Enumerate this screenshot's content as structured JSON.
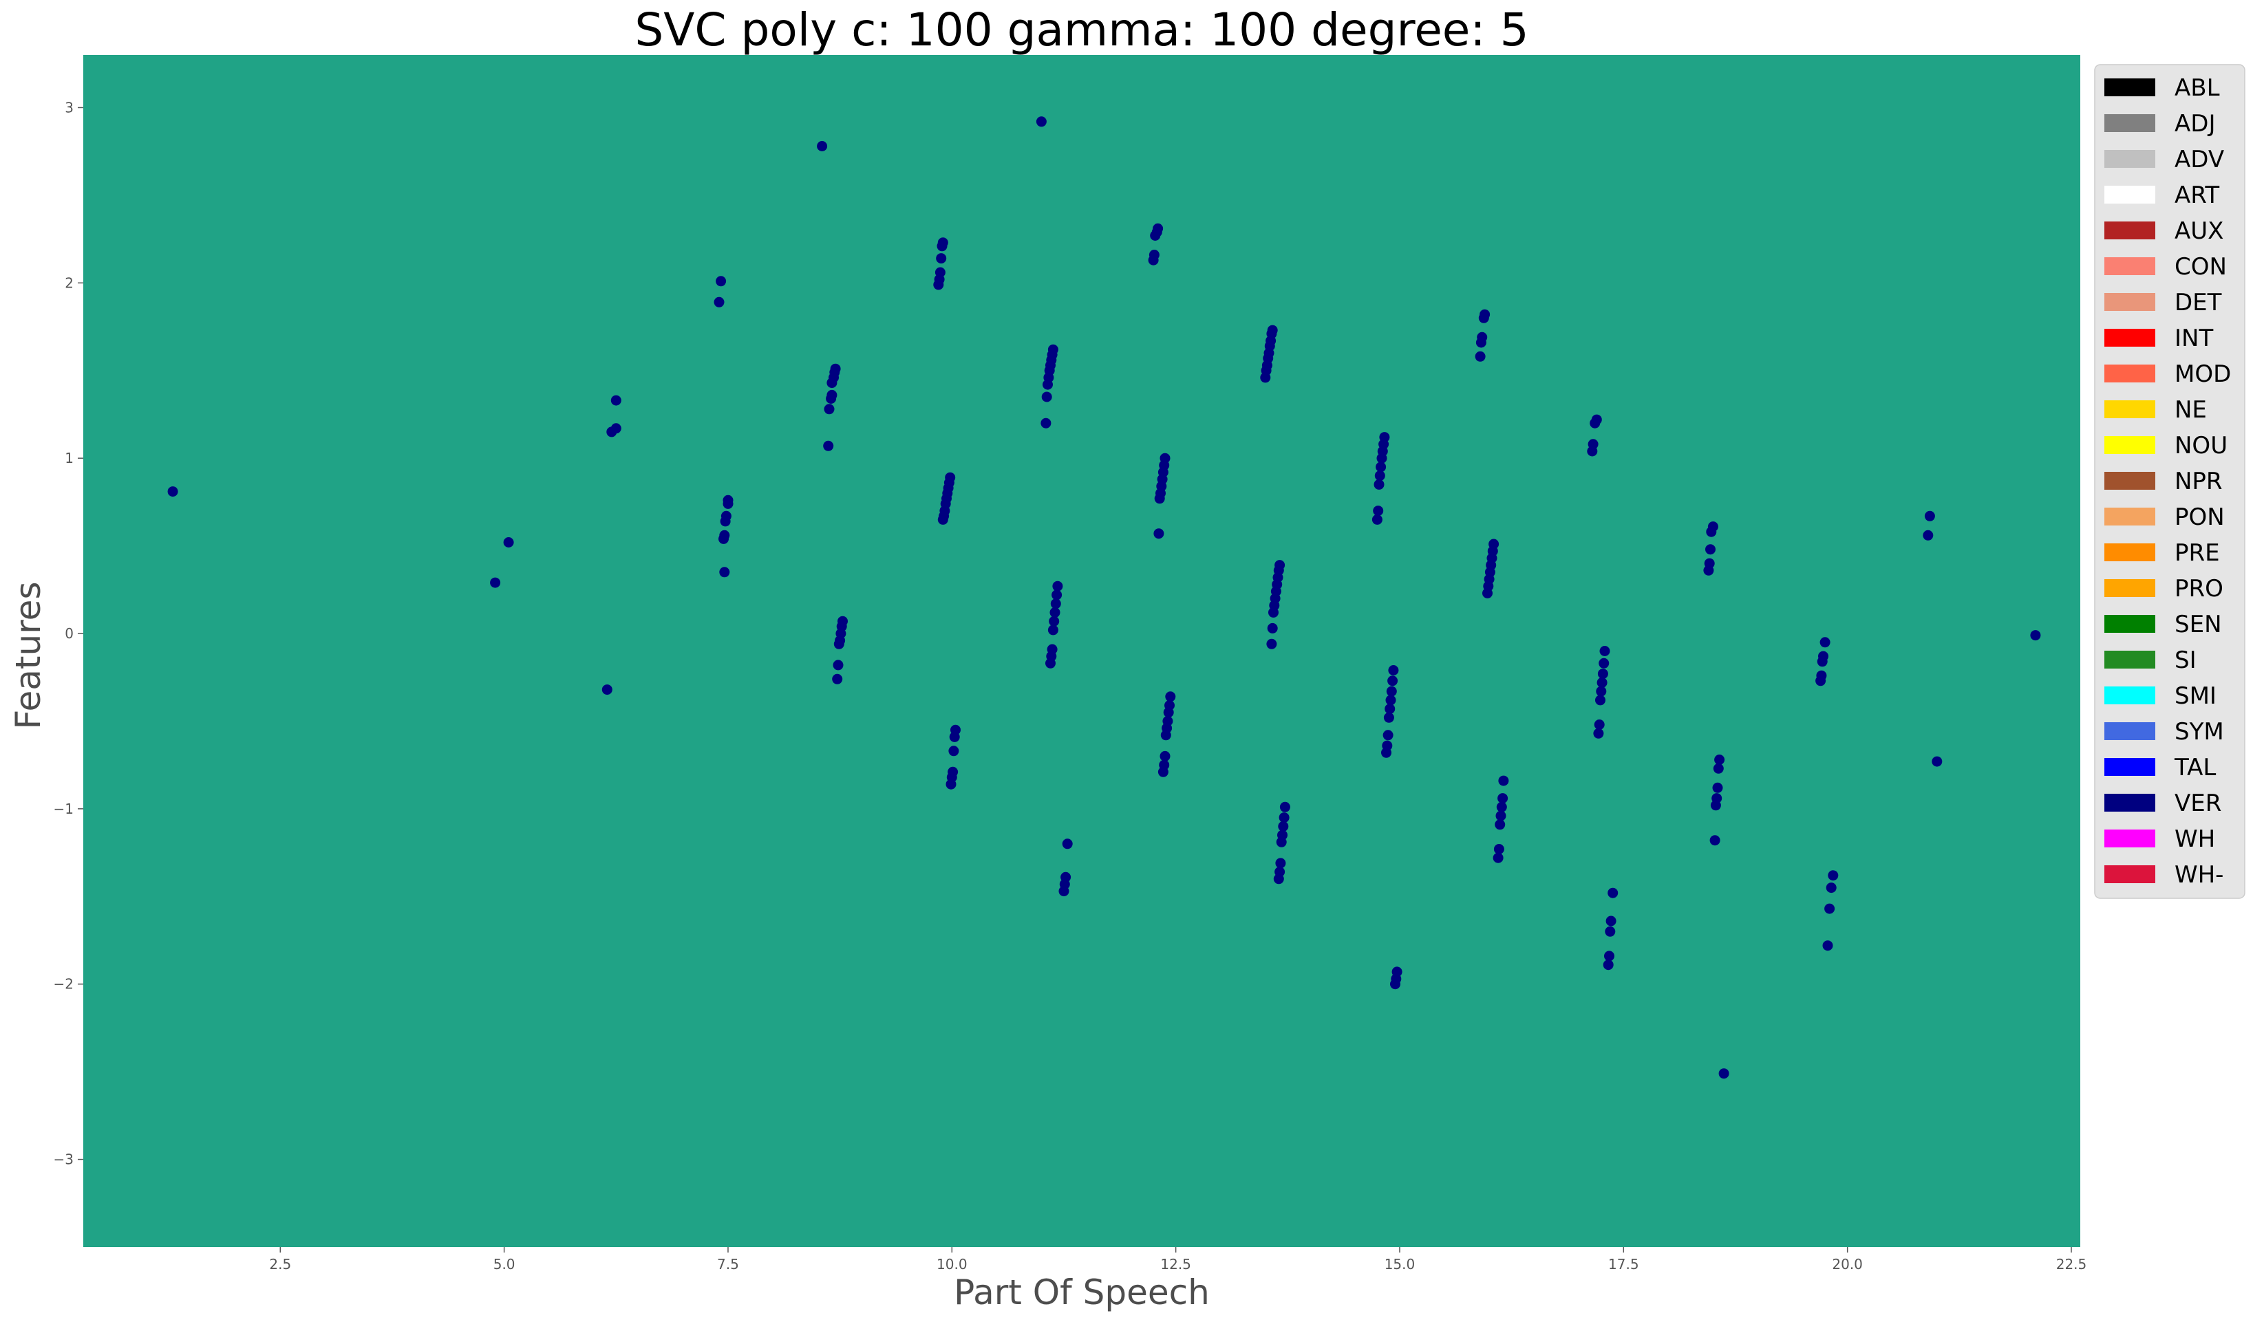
{
  "chart_data": {
    "type": "scatter",
    "title": "SVC poly c: 100 gamma: 100 degree: 5",
    "xlabel": "Part Of Speech",
    "ylabel": "Features",
    "xlim": [
      0.3,
      22.6
    ],
    "ylim": [
      -3.5,
      3.3
    ],
    "xticks": [
      2.5,
      5.0,
      7.5,
      10.0,
      12.5,
      15.0,
      17.5,
      20.0,
      22.5
    ],
    "xtick_labels": [
      "2.5",
      "5.0",
      "7.5",
      "10.0",
      "12.5",
      "15.0",
      "17.5",
      "20.0",
      "22.5"
    ],
    "yticks": [
      3,
      2,
      1,
      0,
      -1,
      -2,
      -3
    ],
    "ytick_labels": [
      "3",
      "2",
      "1",
      "0",
      "−1",
      "−2",
      "−3"
    ],
    "grid": false,
    "legend_position": "right",
    "background_color": "#20a386",
    "point_color": "#000080",
    "legend": [
      {
        "label": "ABL",
        "color": "#000000"
      },
      {
        "label": "ADJ",
        "color": "#808080"
      },
      {
        "label": "ADV",
        "color": "#c0c0c0"
      },
      {
        "label": "ART",
        "color": "#ffffff"
      },
      {
        "label": "AUX",
        "color": "#b22222"
      },
      {
        "label": "CON",
        "color": "#fa8072"
      },
      {
        "label": "DET",
        "color": "#e9967a"
      },
      {
        "label": "INT",
        "color": "#ff0000"
      },
      {
        "label": "MOD",
        "color": "#ff6347"
      },
      {
        "label": "NE",
        "color": "#ffd700"
      },
      {
        "label": "NOU",
        "color": "#ffff00"
      },
      {
        "label": "NPR",
        "color": "#a0522d"
      },
      {
        "label": "PON",
        "color": "#f4a460"
      },
      {
        "label": "PRE",
        "color": "#ff8c00"
      },
      {
        "label": "PRO",
        "color": "#ffa500"
      },
      {
        "label": "SEN",
        "color": "#008000"
      },
      {
        "label": "SI",
        "color": "#228b22"
      },
      {
        "label": "SMI",
        "color": "#00ffff"
      },
      {
        "label": "SYM",
        "color": "#4169e1"
      },
      {
        "label": "TAL",
        "color": "#0000ff"
      },
      {
        "label": "VER",
        "color": "#000080"
      },
      {
        "label": "WH",
        "color": "#ff00ff"
      },
      {
        "label": "WH-",
        "color": "#dc143c"
      }
    ],
    "points": [
      [
        1.3,
        0.81
      ],
      [
        4.9,
        0.29
      ],
      [
        5.05,
        0.52
      ],
      [
        6.15,
        -0.32
      ],
      [
        6.2,
        1.15
      ],
      [
        6.25,
        1.17
      ],
      [
        6.25,
        1.33
      ],
      [
        7.4,
        1.89
      ],
      [
        7.42,
        2.01
      ],
      [
        7.45,
        0.54
      ],
      [
        7.46,
        0.56
      ],
      [
        7.47,
        0.64
      ],
      [
        7.48,
        0.67
      ],
      [
        7.5,
        0.74
      ],
      [
        7.5,
        0.76
      ],
      [
        7.46,
        0.35
      ],
      [
        8.55,
        2.78
      ],
      [
        8.62,
        1.07
      ],
      [
        8.63,
        1.28
      ],
      [
        8.65,
        1.34
      ],
      [
        8.66,
        1.36
      ],
      [
        8.66,
        1.43
      ],
      [
        8.68,
        1.46
      ],
      [
        8.69,
        1.49
      ],
      [
        8.7,
        1.51
      ],
      [
        8.72,
        -0.26
      ],
      [
        8.73,
        -0.18
      ],
      [
        8.74,
        -0.06
      ],
      [
        8.75,
        -0.04
      ],
      [
        8.76,
        0.0
      ],
      [
        8.77,
        0.04
      ],
      [
        8.78,
        0.07
      ],
      [
        9.85,
        1.99
      ],
      [
        9.86,
        2.02
      ],
      [
        9.87,
        2.06
      ],
      [
        9.88,
        2.14
      ],
      [
        9.89,
        2.21
      ],
      [
        9.9,
        2.23
      ],
      [
        9.9,
        0.65
      ],
      [
        9.91,
        0.67
      ],
      [
        9.92,
        0.7
      ],
      [
        9.93,
        0.74
      ],
      [
        9.94,
        0.77
      ],
      [
        9.95,
        0.8
      ],
      [
        9.96,
        0.83
      ],
      [
        9.97,
        0.86
      ],
      [
        9.98,
        0.89
      ],
      [
        9.99,
        -0.86
      ],
      [
        10.0,
        -0.82
      ],
      [
        10.01,
        -0.79
      ],
      [
        10.02,
        -0.67
      ],
      [
        10.03,
        -0.59
      ],
      [
        10.04,
        -0.55
      ],
      [
        11.0,
        2.92
      ],
      [
        11.05,
        1.2
      ],
      [
        11.06,
        1.35
      ],
      [
        11.07,
        1.42
      ],
      [
        11.08,
        1.46
      ],
      [
        11.09,
        1.5
      ],
      [
        11.1,
        1.53
      ],
      [
        11.11,
        1.56
      ],
      [
        11.12,
        1.59
      ],
      [
        11.13,
        1.62
      ],
      [
        11.1,
        -0.17
      ],
      [
        11.11,
        -0.13
      ],
      [
        11.12,
        -0.09
      ],
      [
        11.13,
        0.02
      ],
      [
        11.14,
        0.07
      ],
      [
        11.15,
        0.12
      ],
      [
        11.16,
        0.17
      ],
      [
        11.17,
        0.22
      ],
      [
        11.18,
        0.27
      ],
      [
        11.25,
        -1.47
      ],
      [
        11.26,
        -1.43
      ],
      [
        11.27,
        -1.39
      ],
      [
        11.29,
        -1.2
      ],
      [
        12.25,
        2.13
      ],
      [
        12.26,
        2.16
      ],
      [
        12.27,
        2.27
      ],
      [
        12.29,
        2.29
      ],
      [
        12.3,
        2.31
      ],
      [
        12.31,
        0.57
      ],
      [
        12.32,
        0.77
      ],
      [
        12.33,
        0.8
      ],
      [
        12.34,
        0.84
      ],
      [
        12.35,
        0.88
      ],
      [
        12.36,
        0.92
      ],
      [
        12.37,
        0.96
      ],
      [
        12.38,
        1.0
      ],
      [
        12.36,
        -0.79
      ],
      [
        12.37,
        -0.75
      ],
      [
        12.38,
        -0.7
      ],
      [
        12.39,
        -0.58
      ],
      [
        12.4,
        -0.54
      ],
      [
        12.41,
        -0.5
      ],
      [
        12.42,
        -0.45
      ],
      [
        12.43,
        -0.41
      ],
      [
        12.44,
        -0.36
      ],
      [
        13.5,
        1.46
      ],
      [
        13.51,
        1.5
      ],
      [
        13.52,
        1.53
      ],
      [
        13.53,
        1.57
      ],
      [
        13.54,
        1.6
      ],
      [
        13.55,
        1.64
      ],
      [
        13.56,
        1.67
      ],
      [
        13.57,
        1.71
      ],
      [
        13.58,
        1.73
      ],
      [
        13.57,
        -0.06
      ],
      [
        13.58,
        0.03
      ],
      [
        13.59,
        0.12
      ],
      [
        13.6,
        0.16
      ],
      [
        13.61,
        0.2
      ],
      [
        13.62,
        0.24
      ],
      [
        13.63,
        0.28
      ],
      [
        13.64,
        0.32
      ],
      [
        13.65,
        0.36
      ],
      [
        13.66,
        0.39
      ],
      [
        13.65,
        -1.4
      ],
      [
        13.66,
        -1.36
      ],
      [
        13.67,
        -1.31
      ],
      [
        13.68,
        -1.19
      ],
      [
        13.69,
        -1.15
      ],
      [
        13.7,
        -1.1
      ],
      [
        13.71,
        -1.05
      ],
      [
        13.72,
        -0.99
      ],
      [
        14.75,
        0.65
      ],
      [
        14.76,
        0.7
      ],
      [
        14.77,
        0.85
      ],
      [
        14.78,
        0.9
      ],
      [
        14.79,
        0.95
      ],
      [
        14.8,
        1.0
      ],
      [
        14.81,
        1.04
      ],
      [
        14.82,
        1.08
      ],
      [
        14.83,
        1.12
      ],
      [
        14.85,
        -0.68
      ],
      [
        14.86,
        -0.64
      ],
      [
        14.87,
        -0.58
      ],
      [
        14.88,
        -0.48
      ],
      [
        14.89,
        -0.43
      ],
      [
        14.9,
        -0.38
      ],
      [
        14.91,
        -0.33
      ],
      [
        14.92,
        -0.27
      ],
      [
        14.93,
        -0.21
      ],
      [
        14.95,
        -2.0
      ],
      [
        14.96,
        -1.97
      ],
      [
        14.97,
        -1.93
      ],
      [
        15.9,
        1.58
      ],
      [
        15.91,
        1.66
      ],
      [
        15.92,
        1.69
      ],
      [
        15.94,
        1.8
      ],
      [
        15.95,
        1.82
      ],
      [
        15.98,
        0.23
      ],
      [
        15.99,
        0.27
      ],
      [
        16.0,
        0.31
      ],
      [
        16.01,
        0.35
      ],
      [
        16.02,
        0.39
      ],
      [
        16.03,
        0.43
      ],
      [
        16.04,
        0.47
      ],
      [
        16.05,
        0.51
      ],
      [
        16.1,
        -1.28
      ],
      [
        16.11,
        -1.23
      ],
      [
        16.12,
        -1.09
      ],
      [
        16.13,
        -1.04
      ],
      [
        16.14,
        -0.99
      ],
      [
        16.15,
        -0.94
      ],
      [
        16.16,
        -0.84
      ],
      [
        17.15,
        1.04
      ],
      [
        17.16,
        1.08
      ],
      [
        17.18,
        1.2
      ],
      [
        17.2,
        1.22
      ],
      [
        17.22,
        -0.57
      ],
      [
        17.23,
        -0.52
      ],
      [
        17.24,
        -0.38
      ],
      [
        17.25,
        -0.33
      ],
      [
        17.26,
        -0.28
      ],
      [
        17.27,
        -0.23
      ],
      [
        17.28,
        -0.17
      ],
      [
        17.29,
        -0.1
      ],
      [
        17.33,
        -1.89
      ],
      [
        17.34,
        -1.84
      ],
      [
        17.35,
        -1.7
      ],
      [
        17.36,
        -1.64
      ],
      [
        17.38,
        -1.48
      ],
      [
        18.45,
        0.36
      ],
      [
        18.46,
        0.4
      ],
      [
        18.47,
        0.48
      ],
      [
        18.48,
        0.58
      ],
      [
        18.5,
        0.61
      ],
      [
        18.52,
        -1.18
      ],
      [
        18.53,
        -0.98
      ],
      [
        18.54,
        -0.94
      ],
      [
        18.55,
        -0.88
      ],
      [
        18.56,
        -0.77
      ],
      [
        18.57,
        -0.72
      ],
      [
        18.62,
        -2.51
      ],
      [
        19.7,
        -0.27
      ],
      [
        19.71,
        -0.24
      ],
      [
        19.72,
        -0.16
      ],
      [
        19.73,
        -0.13
      ],
      [
        19.75,
        -0.05
      ],
      [
        19.78,
        -1.78
      ],
      [
        19.8,
        -1.57
      ],
      [
        19.82,
        -1.45
      ],
      [
        19.84,
        -1.38
      ],
      [
        20.9,
        0.56
      ],
      [
        20.92,
        0.67
      ],
      [
        21.0,
        -0.73
      ],
      [
        22.1,
        -0.01
      ]
    ]
  }
}
